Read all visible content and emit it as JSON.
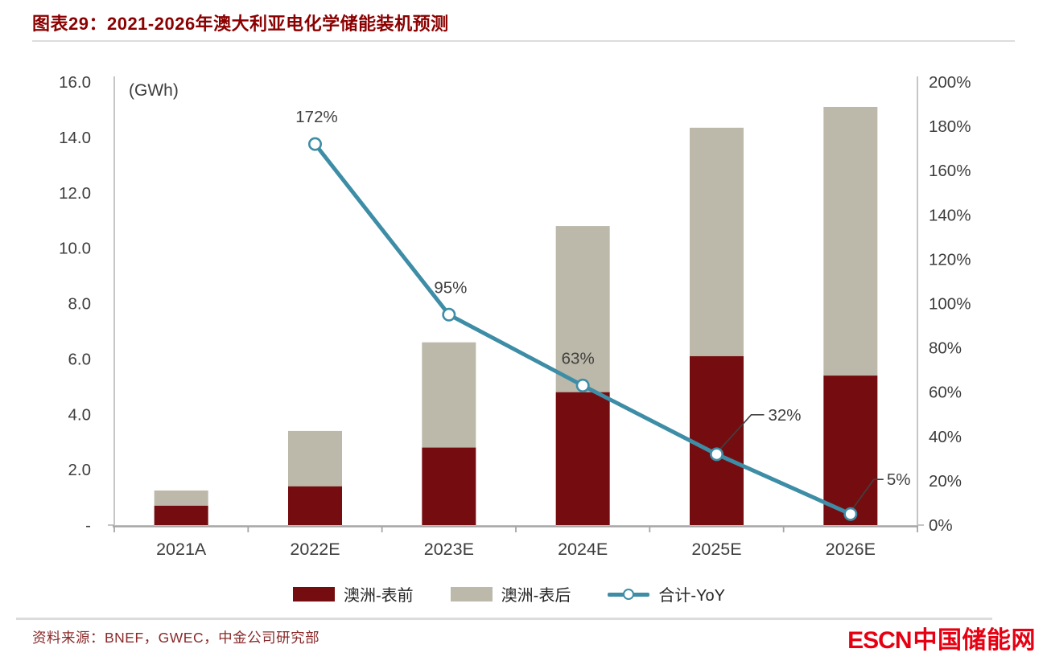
{
  "header": {
    "title": "图表29：2021-2026年澳大利亚电化学储能装机预测",
    "title_color": "#8b0000"
  },
  "chart_data": {
    "type": "bar",
    "subtype": "stacked-bar-with-line",
    "unit_label": "(GWh)",
    "categories": [
      "2021A",
      "2022E",
      "2023E",
      "2024E",
      "2025E",
      "2026E"
    ],
    "series": [
      {
        "name": "澳洲-表前",
        "type": "bar",
        "stack": "gwh",
        "color": "#750d10",
        "values": [
          0.7,
          1.4,
          2.8,
          4.8,
          6.1,
          5.4
        ]
      },
      {
        "name": "澳洲-表后",
        "type": "bar",
        "stack": "gwh",
        "color": "#bcb9aa",
        "values": [
          0.55,
          2.0,
          3.8,
          6.0,
          8.25,
          9.7
        ]
      },
      {
        "name": "合计-YoY",
        "type": "line",
        "axis": "right",
        "color": "#3e8da6",
        "values": [
          null,
          172,
          95,
          63,
          32,
          5
        ],
        "point_labels": [
          null,
          "172%",
          "95%",
          "63%",
          "32%",
          "5%"
        ]
      }
    ],
    "left_axis": {
      "labels": [
        "16.0",
        "14.0",
        "12.0",
        "10.0",
        "8.0",
        "6.0",
        "4.0",
        "2.0",
        "-"
      ],
      "values": [
        16,
        14,
        12,
        10,
        8,
        6,
        4,
        2,
        0
      ],
      "min": 0,
      "max": 16
    },
    "right_axis": {
      "labels": [
        "200%",
        "180%",
        "160%",
        "140%",
        "120%",
        "100%",
        "80%",
        "60%",
        "40%",
        "20%",
        "0%"
      ],
      "values": [
        200,
        180,
        160,
        140,
        120,
        100,
        80,
        60,
        40,
        20,
        0
      ],
      "min": 0,
      "max": 200
    },
    "grid": false,
    "legend_position": "bottom"
  },
  "legend": {
    "items": [
      {
        "label": "澳洲-表前",
        "color": "#750d10",
        "type": "swatch"
      },
      {
        "label": "澳洲-表后",
        "color": "#bcb9aa",
        "type": "swatch"
      },
      {
        "label": "合计-YoY",
        "color": "#3e8da6",
        "type": "line-marker"
      }
    ]
  },
  "footer": {
    "source": "资料来源：BNEF，GWEC，中金公司研究部",
    "source_color": "#8a2a2a",
    "logo_text_en": "ESCN",
    "logo_text_zh": "中国储能网",
    "logo_color": "#e60012"
  }
}
